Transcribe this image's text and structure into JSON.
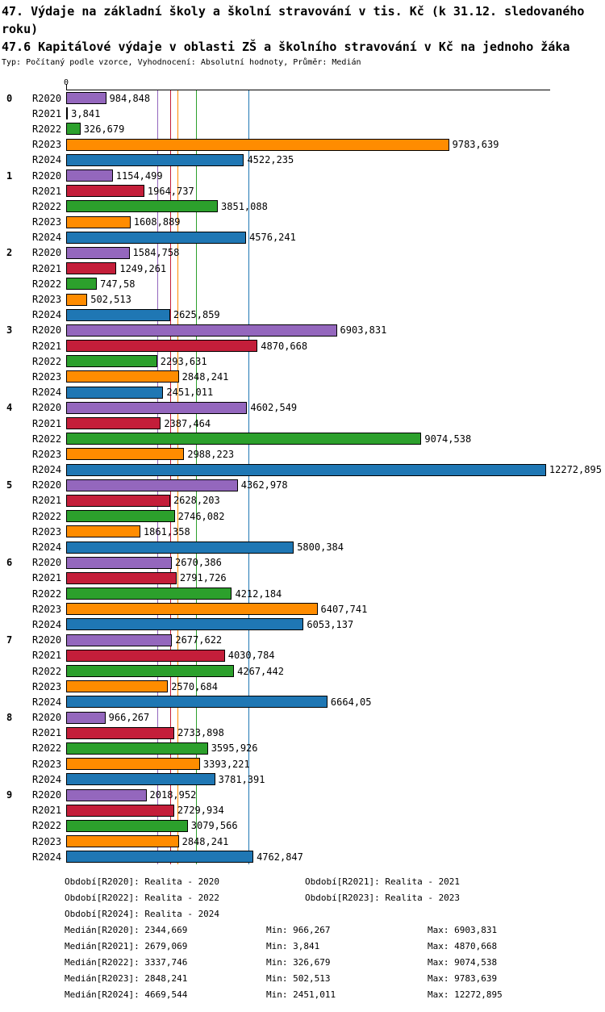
{
  "header": {
    "title1": "47. Výdaje na základní školy a školní stravování v tis. Kč (k 31.12. sledovaného roku)",
    "title2": "47.6 Kapitálové výdaje v oblasti ZŠ a školního stravování v Kč na jednoho žáka",
    "meta": "Typ: Počítaný podle vzorce, Vyhodnocení: Absolutní hodnoty, Průměr: Medián"
  },
  "chart_data": {
    "type": "bar",
    "orientation": "horizontal",
    "title": "47.6 Kapitálové výdaje v oblasti ZŠ a školního stravování v Kč na jednoho žáka",
    "axis_zero_label": "0",
    "xlim": [
      0,
      12420
    ],
    "grid": false,
    "groups": [
      "0",
      "1",
      "2",
      "3",
      "4",
      "5",
      "6",
      "7",
      "8",
      "9"
    ],
    "series": [
      {
        "name": "R2020",
        "color": "#9467BD",
        "median": "2344,669",
        "values": [
          "984,848",
          "1154,499",
          "1584,758",
          "6903,831",
          "4602,549",
          "4362,978",
          "2670,386",
          "2677,622",
          "966,267",
          "2018,952"
        ]
      },
      {
        "name": "R2021",
        "color": "#C41E3A",
        "median": "2679,069",
        "values": [
          "3,841",
          "1964,737",
          "1249,261",
          "4870,668",
          "2387,464",
          "2628,203",
          "2791,726",
          "4030,784",
          "2733,898",
          "2729,934"
        ]
      },
      {
        "name": "R2022",
        "color": "#2CA02C",
        "median": "3337,746",
        "values": [
          "326,679",
          "3851,088",
          "747,58",
          "2293,631",
          "9074,538",
          "2746,082",
          "4212,184",
          "4267,442",
          "3595,926",
          "3079,566"
        ]
      },
      {
        "name": "R2023",
        "color": "#FF8C00",
        "median": "2848,241",
        "values": [
          "9783,639",
          "1608,889",
          "502,513",
          "2848,241",
          "2988,223",
          "1861,358",
          "6407,741",
          "2570,684",
          "3393,221",
          "2848,241"
        ]
      },
      {
        "name": "R2024",
        "color": "#1F77B4",
        "median": "4669,544",
        "values": [
          "4522,235",
          "4576,241",
          "2625,859",
          "2451,011",
          "12272,895",
          "5800,384",
          "6053,137",
          "6664,05",
          "3781,391",
          "4762,847"
        ]
      }
    ]
  },
  "legend": [
    {
      "label": "Období[R2020]: Realita - 2020"
    },
    {
      "label": "Období[R2021]: Realita - 2021"
    },
    {
      "label": "Období[R2022]: Realita - 2022"
    },
    {
      "label": "Období[R2023]: Realita - 2023"
    },
    {
      "label": "Období[R2024]: Realita - 2024"
    }
  ],
  "stats": [
    {
      "median": "Medián[R2020]: 2344,669",
      "min": "Min: 966,267",
      "max": "Max: 6903,831"
    },
    {
      "median": "Medián[R2021]: 2679,069",
      "min": "Min: 3,841",
      "max": "Max: 4870,668"
    },
    {
      "median": "Medián[R2022]: 3337,746",
      "min": "Min: 326,679",
      "max": "Max: 9074,538"
    },
    {
      "median": "Medián[R2023]: 2848,241",
      "min": "Min: 502,513",
      "max": "Max: 9783,639"
    },
    {
      "median": "Medián[R2024]: 4669,544",
      "min": "Min: 2451,011",
      "max": "Max: 12272,895"
    }
  ]
}
